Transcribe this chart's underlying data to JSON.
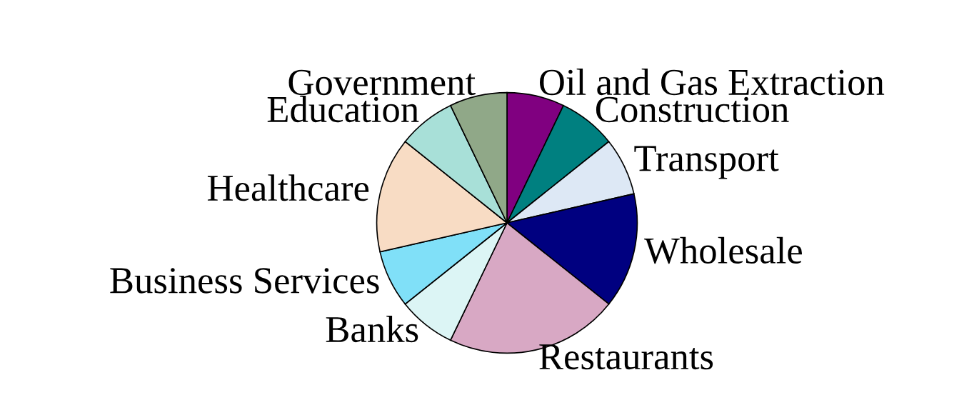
{
  "chart_data": {
    "type": "pie",
    "categories": [
      "Oil and Gas Extraction",
      "Construction",
      "Transport",
      "Wholesale",
      "Restaurants",
      "Banks",
      "Business Services",
      "Healthcare",
      "Education",
      "Government"
    ],
    "values": [
      7.14,
      7.14,
      7.14,
      14.29,
      21.43,
      7.14,
      7.14,
      14.29,
      7.14,
      7.14
    ],
    "colors": [
      "#800080",
      "#008080",
      "#dde8f5",
      "#000080",
      "#d8a8c4",
      "#dcf5f5",
      "#80e0f8",
      "#f8dcc4",
      "#a8e0d8",
      "#90a888"
    ],
    "legend": false
  }
}
